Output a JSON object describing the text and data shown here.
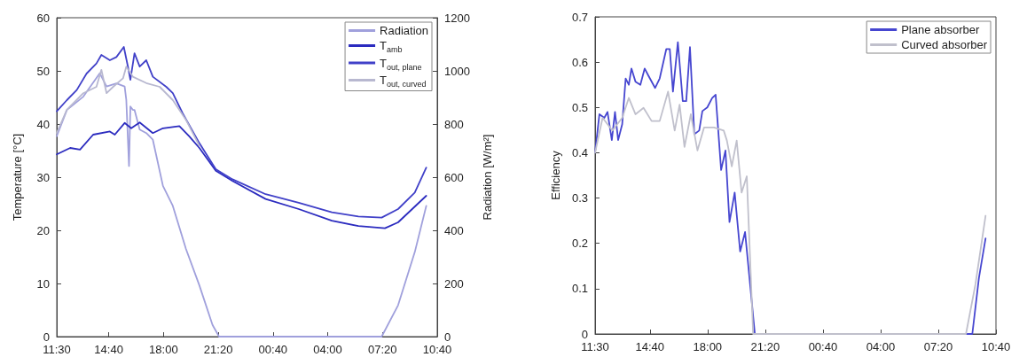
{
  "chart_data": [
    {
      "type": "line",
      "ylabel": "Temperature [°C]",
      "y2label": "Radiation [W/m²]",
      "legend": "top right",
      "marker": "none",
      "xlim": [
        "2000-01-01T11:30",
        "2000-01-02T10:40"
      ],
      "xticks": [
        {
          "value": "2000-01-01T11:30",
          "label": "11:30"
        },
        {
          "value": "2000-01-01T14:40",
          "label": "14:40"
        },
        {
          "value": "2000-01-01T18:00",
          "label": "18:00"
        },
        {
          "value": "2000-01-01T21:20",
          "label": "21:20"
        },
        {
          "value": "2000-01-02T00:40",
          "label": "00:40"
        },
        {
          "value": "2000-01-02T04:00",
          "label": "04:00"
        },
        {
          "value": "2000-01-02T07:20",
          "label": "07:20"
        },
        {
          "value": "2000-01-02T10:40",
          "label": "10:40"
        }
      ],
      "ylim": [
        0,
        60
      ],
      "yticks": [
        0,
        10,
        20,
        30,
        40,
        50,
        60
      ],
      "y2lim": [
        0,
        1200
      ],
      "y2ticks": [
        0,
        200,
        400,
        600,
        800,
        1000,
        1200
      ],
      "series": [
        {
          "name": "Radiation",
          "color": "#a0a0dc",
          "axis": "y2",
          "x": [
            "2000-01-01T11:30",
            "2000-01-01T12:07",
            "2000-01-01T13:07",
            "2000-01-01T14:07",
            "2000-01-01T14:32",
            "2000-01-01T15:08",
            "2000-01-01T15:38",
            "2000-01-01T15:44",
            "2000-01-01T15:54",
            "2000-01-01T15:59",
            "2000-01-01T16:08",
            "2000-01-01T16:14",
            "2000-01-01T16:33",
            "2000-01-01T16:57",
            "2000-01-01T17:21",
            "2000-01-01T17:58",
            "2000-01-01T18:34",
            "2000-01-01T19:22",
            "2000-01-01T20:11",
            "2000-01-01T20:59",
            "2000-01-01T21:23",
            "2000-01-02T07:17",
            "2000-01-02T08:17",
            "2000-01-02T09:18",
            "2000-01-02T10:00"
          ],
          "values": [
            754,
            853,
            903,
            991,
            941,
            953,
            941,
            891,
            642,
            866,
            853,
            853,
            779,
            766,
            741,
            567,
            492,
            330,
            193,
            44,
            0,
            0,
            118,
            318,
            492
          ]
        },
        {
          "name": "T$_{amb}$",
          "color": "#2b2bbf",
          "x": [
            "2000-01-01T11:30",
            "2000-01-01T12:19",
            "2000-01-01T12:55",
            "2000-01-01T13:43",
            "2000-01-01T14:44",
            "2000-01-01T15:02",
            "2000-01-01T15:38",
            "2000-01-01T16:02",
            "2000-01-01T16:33",
            "2000-01-01T17:21",
            "2000-01-01T17:58",
            "2000-01-01T18:58",
            "2000-01-01T19:34",
            "2000-01-01T20:11",
            "2000-01-01T21:11",
            "2000-01-01T22:12",
            "2000-01-02T00:13",
            "2000-01-02T02:14",
            "2000-01-02T04:15",
            "2000-01-02T05:52",
            "2000-01-02T07:29",
            "2000-01-02T08:17",
            "2000-01-02T10:00"
          ],
          "values": [
            34.3,
            35.5,
            35.2,
            38,
            38.6,
            38,
            40.2,
            39.2,
            40.3,
            38.3,
            39.2,
            39.6,
            37.7,
            35.5,
            31.2,
            29.3,
            25.9,
            24,
            21.8,
            20.8,
            20.4,
            21.5,
            26.5
          ]
        },
        {
          "name": "T$_{out, plane}$",
          "color": "#4040c8",
          "x": [
            "2000-01-01T11:30",
            "2000-01-01T12:07",
            "2000-01-01T12:43",
            "2000-01-01T13:19",
            "2000-01-01T13:55",
            "2000-01-01T14:13",
            "2000-01-01T14:44",
            "2000-01-01T15:08",
            "2000-01-01T15:35",
            "2000-01-01T15:50",
            "2000-01-01T15:59",
            "2000-01-01T16:14",
            "2000-01-01T16:33",
            "2000-01-01T16:57",
            "2000-01-01T17:21",
            "2000-01-01T18:10",
            "2000-01-01T18:34",
            "2000-01-01T19:10",
            "2000-01-01T20:11",
            "2000-01-01T21:11",
            "2000-01-01T22:12",
            "2000-01-02T00:13",
            "2000-01-02T02:14",
            "2000-01-02T04:15",
            "2000-01-02T05:52",
            "2000-01-02T07:17",
            "2000-01-02T08:17",
            "2000-01-02T09:18",
            "2000-01-02T10:00"
          ],
          "values": [
            42.4,
            44.5,
            46.4,
            49.5,
            51.4,
            53,
            52,
            52.6,
            54.5,
            50.8,
            48.3,
            53.3,
            50.8,
            52,
            48.9,
            47,
            45.8,
            42,
            36.4,
            31.5,
            29.6,
            26.8,
            25.2,
            23.4,
            22.6,
            22.4,
            24,
            27.1,
            31.8
          ]
        },
        {
          "name": "T$_{out, curved}$",
          "color": "#b8b8d0",
          "x": [
            "2000-01-01T11:30",
            "2000-01-01T12:07",
            "2000-01-01T13:07",
            "2000-01-01T13:55",
            "2000-01-01T14:13",
            "2000-01-01T14:32",
            "2000-01-01T14:56",
            "2000-01-01T15:32",
            "2000-01-01T15:44",
            "2000-01-01T16:08",
            "2000-01-01T16:57",
            "2000-01-01T17:46",
            "2000-01-01T18:34",
            "2000-01-01T19:22",
            "2000-01-01T20:11"
          ],
          "values": [
            38.3,
            42.7,
            45.8,
            47,
            50.2,
            45.8,
            47,
            48.6,
            50.8,
            48.9,
            47.7,
            47,
            44.5,
            40.8,
            35.9
          ]
        }
      ]
    },
    {
      "type": "line",
      "ylabel": "Efficiency",
      "legend": "top right",
      "marker": "none",
      "xlim": [
        "2000-01-01T11:30",
        "2000-01-02T10:40"
      ],
      "xticks": [
        {
          "value": "2000-01-01T11:30",
          "label": "11:30"
        },
        {
          "value": "2000-01-01T14:40",
          "label": "14:40"
        },
        {
          "value": "2000-01-01T18:00",
          "label": "18:00"
        },
        {
          "value": "2000-01-01T21:20",
          "label": "21:20"
        },
        {
          "value": "2000-01-02T00:40",
          "label": "00:40"
        },
        {
          "value": "2000-01-02T04:00",
          "label": "04:00"
        },
        {
          "value": "2000-01-02T07:20",
          "label": "07:20"
        },
        {
          "value": "2000-01-02T10:40",
          "label": "10:40"
        }
      ],
      "ylim": [
        0,
        0.7
      ],
      "yticks": [
        0,
        0.1,
        0.2,
        0.3,
        0.4,
        0.5,
        0.6,
        0.7
      ],
      "series": [
        {
          "name": "Plane absorber",
          "color": "#4646d0",
          "x": [
            "2000-01-01T11:30",
            "2000-01-01T11:45",
            "2000-01-01T12:02",
            "2000-01-01T12:13",
            "2000-01-01T12:28",
            "2000-01-01T12:39",
            "2000-01-01T12:50",
            "2000-01-01T13:04",
            "2000-01-01T13:16",
            "2000-01-01T13:27",
            "2000-01-01T13:36",
            "2000-01-01T13:50",
            "2000-01-01T14:07",
            "2000-01-01T14:22",
            "2000-01-01T14:35",
            "2000-01-01T14:58",
            "2000-01-01T15:14",
            "2000-01-01T15:37",
            "2000-01-01T15:49",
            "2000-01-01T16:00",
            "2000-01-01T16:17",
            "2000-01-01T16:34",
            "2000-01-01T16:46",
            "2000-01-01T16:59",
            "2000-01-01T17:14",
            "2000-01-01T17:31",
            "2000-01-01T17:42",
            "2000-01-01T17:59",
            "2000-01-01T18:16",
            "2000-01-01T18:28",
            "2000-01-01T18:47",
            "2000-01-01T19:02",
            "2000-01-01T19:16",
            "2000-01-01T19:34",
            "2000-01-01T19:53",
            "2000-01-01T20:10",
            "2000-01-01T20:44",
            "2000-01-02T09:18",
            "2000-01-02T09:41",
            "2000-01-02T10:04"
          ],
          "values": [
            0.4,
            0.485,
            0.477,
            0.49,
            0.428,
            0.49,
            0.428,
            0.463,
            0.564,
            0.55,
            0.586,
            0.557,
            0.55,
            0.586,
            0.57,
            0.543,
            0.564,
            0.629,
            0.629,
            0.535,
            0.644,
            0.514,
            0.514,
            0.633,
            0.441,
            0.449,
            0.492,
            0.5,
            0.521,
            0.528,
            0.362,
            0.405,
            0.247,
            0.312,
            0.182,
            0.225,
            0,
            0,
            0.124,
            0.211
          ]
        },
        {
          "name": "Curved absorber",
          "color": "#c0c0cc",
          "x": [
            "2000-01-01T11:30",
            "2000-01-01T11:56",
            "2000-01-01T12:30",
            "2000-01-01T13:04",
            "2000-01-01T13:27",
            "2000-01-01T13:50",
            "2000-01-01T14:18",
            "2000-01-01T14:46",
            "2000-01-01T15:14",
            "2000-01-01T15:43",
            "2000-01-01T16:06",
            "2000-01-01T16:23",
            "2000-01-01T16:40",
            "2000-01-01T17:02",
            "2000-01-01T17:25",
            "2000-01-01T17:48",
            "2000-01-01T18:22",
            "2000-01-01T18:56",
            "2000-01-01T19:07",
            "2000-01-01T19:24",
            "2000-01-01T19:41",
            "2000-01-01T19:58",
            "2000-01-01T20:16",
            "2000-01-01T20:38",
            "2000-01-02T08:56",
            "2000-01-02T09:29",
            "2000-01-02T10:04"
          ],
          "values": [
            0.4,
            0.477,
            0.449,
            0.477,
            0.521,
            0.485,
            0.499,
            0.47,
            0.47,
            0.535,
            0.449,
            0.506,
            0.413,
            0.485,
            0.405,
            0.456,
            0.456,
            0.449,
            0.427,
            0.37,
            0.427,
            0.312,
            0.348,
            0,
            0,
            0.11,
            0.261
          ]
        }
      ]
    }
  ]
}
